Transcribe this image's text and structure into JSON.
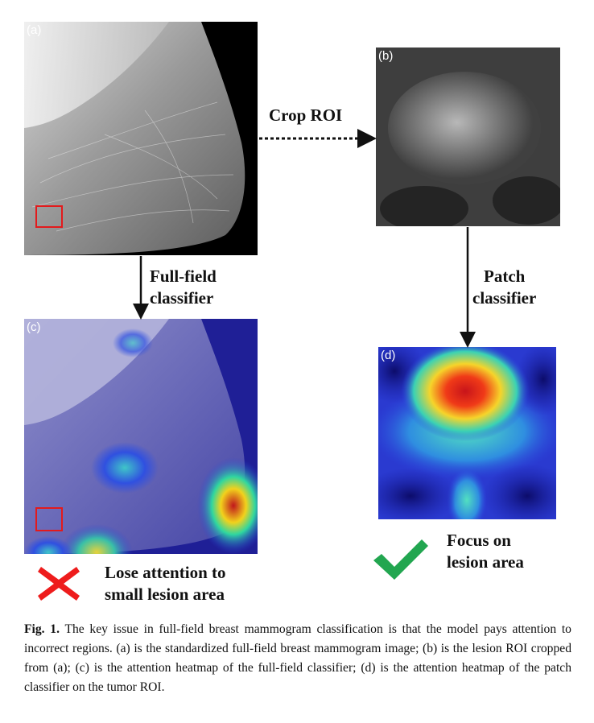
{
  "panels": {
    "a": {
      "label": "(a)"
    },
    "b": {
      "label": "(b)"
    },
    "c": {
      "label": "(c)"
    },
    "d": {
      "label": "(d)"
    }
  },
  "labels": {
    "crop_roi": "Crop ROI",
    "full_field_line1": "Full-field",
    "full_field_line2": "classifier",
    "patch_line1": "Patch",
    "patch_line2": "classifier",
    "lose_line1": "Lose attention to",
    "lose_line2": "small lesion area",
    "focus_line1": "Focus on",
    "focus_line2": "lesion area"
  },
  "icons": {
    "cross": "red-cross-icon",
    "check": "green-check-icon"
  },
  "colors": {
    "roi_box": "#e31a1c",
    "cross": "#ee1c1c",
    "check": "#22a650"
  },
  "caption": {
    "fig_number": "Fig. 1.",
    "text": "The key issue in full-field breast mammogram classification is that the model pays attention to incorrect regions. (a) is the standardized full-field breast mammogram image; (b) is the lesion ROI cropped from (a); (c) is the attention heatmap of the full-field classifier; (d) is the attention heatmap of the patch classifier on the tumor ROI."
  }
}
